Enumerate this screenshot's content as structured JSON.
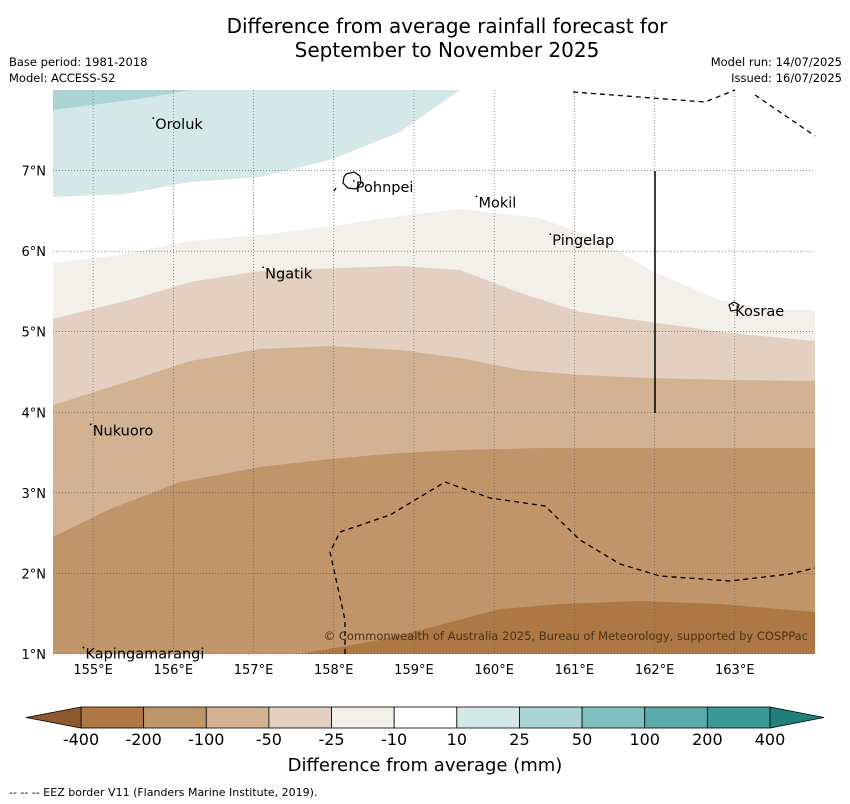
{
  "title_line1": "Difference from average rainfall forecast for",
  "title_line2": "September to November 2025",
  "base_period": "Base period: 1981-2018",
  "model": "Model: ACCESS-S2",
  "model_run": "Model run: 14/07/2025",
  "issued": "Issued: 16/07/2025",
  "copyright": "© Commonwealth of Australia 2025, Bureau of Meteorology, supported by COSPPac",
  "footnote": "-- -- -- EEZ border V11 (Flanders Marine Institute, 2019).",
  "map": {
    "lon_ticks": [
      "155°E",
      "156°E",
      "157°E",
      "158°E",
      "159°E",
      "160°E",
      "161°E",
      "162°E",
      "163°E"
    ],
    "lat_ticks": [
      "7°N",
      "6°N",
      "5°N",
      "4°N",
      "3°N",
      "2°N",
      "1°N"
    ],
    "lon_range": [
      154.5,
      164.0
    ],
    "lat_range": [
      1.0,
      8.0
    ],
    "islands": [
      {
        "name": "Oroluk",
        "lon": 155.75,
        "lat": 7.65
      },
      {
        "name": "Pohnpei",
        "lon": 158.25,
        "lat": 6.87
      },
      {
        "name": "Mokil",
        "lon": 159.78,
        "lat": 6.68
      },
      {
        "name": "Pingelap",
        "lon": 160.7,
        "lat": 6.21
      },
      {
        "name": "Ngatik",
        "lon": 157.12,
        "lat": 5.8
      },
      {
        "name": "Kosrae",
        "lon": 162.98,
        "lat": 5.33
      },
      {
        "name": "Nukuoro",
        "lon": 154.97,
        "lat": 3.85
      },
      {
        "name": "Kapingamarangi",
        "lon": 154.88,
        "lat": 1.08
      }
    ]
  },
  "colorbar": {
    "title": "Difference from average (mm)",
    "labels": [
      "-400",
      "-200",
      "-100",
      "-50",
      "-25",
      "-10",
      "10",
      "25",
      "50",
      "100",
      "200",
      "400"
    ],
    "colors": {
      "lt_-400": "#8c5a2e",
      "-400_-200": "#ad7843",
      "-200_-100": "#c0956a",
      "-100_-50": "#d2b293",
      "-50_-25": "#e3d0c0",
      "-25_-10": "#f3efe9",
      "-10_10": "#ffffff",
      "10_25": "#d4e8e8",
      "25_50": "#acd4d4",
      "50_100": "#80c0be",
      "100_200": "#5aaca9",
      "200_400": "#3a9996",
      "gt_400": "#217f7b"
    }
  }
}
